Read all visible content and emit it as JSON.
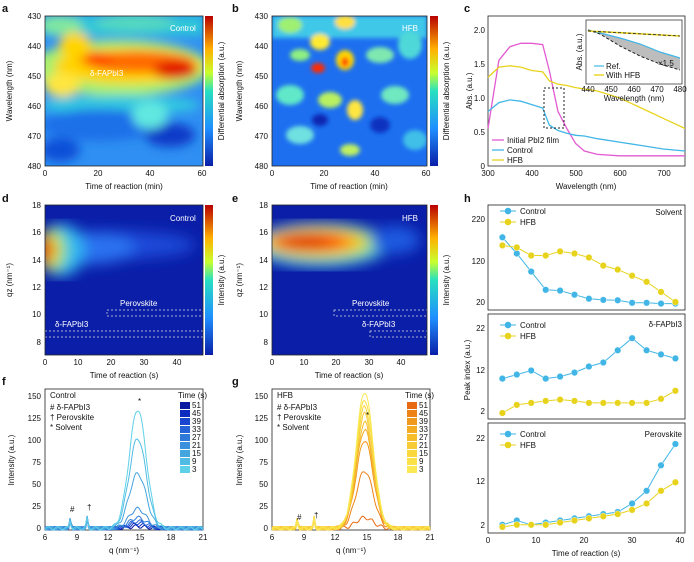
{
  "colors": {
    "control_blue": "#41b6e6",
    "hfb_yellow": "#e8d31c",
    "initial_magenta": "#e35ad2",
    "hm_low": "#0a1ea8",
    "hm_high": "#b80000"
  },
  "panels": {
    "a": {
      "letter": "a",
      "label": "Control",
      "overlay_text": "δ-FAPbI3",
      "xlabel": "Time of reaction (min)",
      "ylabel": "Wavelength (nm)",
      "cbar_label": "Differential absorption (a.u.)",
      "xticks": [
        "0",
        "20",
        "40",
        "60"
      ],
      "yticks": [
        "430",
        "440",
        "450",
        "460",
        "470",
        "480"
      ]
    },
    "b": {
      "letter": "b",
      "label": "HFB",
      "xlabel": "Time of reaction (min)",
      "ylabel": "Wavelength (nm)",
      "cbar_label": "Differential absorption (a.u.)",
      "xticks": [
        "0",
        "20",
        "40",
        "60"
      ],
      "yticks": [
        "430",
        "440",
        "450",
        "460",
        "470",
        "480"
      ]
    },
    "c": {
      "letter": "c",
      "xlabel": "Wavelength (nm)",
      "ylabel": "Abs. (a.u.)",
      "xticks": [
        "300",
        "400",
        "500",
        "600",
        "700"
      ],
      "yticks": [
        "0",
        "0.5",
        "1.0",
        "1.5",
        "2.0"
      ],
      "legend": [
        "Initial PbI2 film",
        "Control",
        "HFB"
      ],
      "inset": {
        "xlabel": "Wavelength (nm)",
        "ylabel": "Abs. (a.u.)",
        "xticks": [
          "440",
          "450",
          "460",
          "470",
          "480"
        ],
        "legend": [
          "Ref.",
          "With HFB"
        ],
        "annotation": "×1.5"
      }
    },
    "d": {
      "letter": "d",
      "label": "Control",
      "label_perovskite": "Perovskite",
      "label_delta": "δ-FAPbI3",
      "xlabel": "Time of reaction (s)",
      "ylabel": "qz (nm⁻¹)",
      "cbar_label": "Intensity (a.u.)",
      "xticks": [
        "0",
        "10",
        "20",
        "30",
        "40"
      ],
      "yticks": [
        "8",
        "10",
        "12",
        "14",
        "16",
        "18"
      ]
    },
    "e": {
      "letter": "e",
      "label": "HFB",
      "label_perovskite": "Perovskite",
      "label_delta": "δ-FAPbI3",
      "xlabel": "Time of reaction (s)",
      "ylabel": "qz (nm⁻¹)",
      "cbar_label": "Intensity (a.u.)",
      "xticks": [
        "0",
        "10",
        "20",
        "30",
        "40"
      ],
      "yticks": [
        "8",
        "10",
        "12",
        "14",
        "16",
        "18"
      ]
    },
    "f": {
      "letter": "f",
      "title": "Control",
      "legend_title": "Time (s)",
      "times": [
        "51",
        "45",
        "39",
        "33",
        "27",
        "21",
        "15",
        "9",
        "3"
      ],
      "markers": [
        "# δ-FAPbI3",
        "† Perovskite",
        "* Solvent"
      ],
      "xlabel": "q (nm⁻¹)",
      "ylabel": "Intensity (a.u.)",
      "xticks": [
        "6",
        "9",
        "12",
        "15",
        "18",
        "21"
      ],
      "yticks": [
        "0",
        "25",
        "50",
        "75",
        "100",
        "125",
        "150"
      ]
    },
    "g": {
      "letter": "g",
      "title": "HFB",
      "legend_title": "Time (s)",
      "times": [
        "51",
        "45",
        "39",
        "33",
        "27",
        "21",
        "15",
        "9",
        "3"
      ],
      "markers": [
        "# δ-FAPbI3",
        "† Perovskite",
        "* Solvent"
      ],
      "xlabel": "q (nm⁻¹)",
      "ylabel": "Intensity (a.u.)",
      "xticks": [
        "6",
        "9",
        "12",
        "15",
        "18",
        "21"
      ],
      "yticks": [
        "0",
        "25",
        "50",
        "75",
        "100",
        "125",
        "150"
      ]
    },
    "h": {
      "letter": "h",
      "ylabel": "Peak index (a.u.)",
      "xlabel": "Time of reaction (s)",
      "xticks": [
        "0",
        "10",
        "20",
        "30",
        "40"
      ],
      "legend": [
        "Control",
        "HFB"
      ],
      "subs": [
        {
          "title": "Solvent",
          "yticks": [
            "20",
            "120",
            "220"
          ]
        },
        {
          "title": "δ-FAPbI3",
          "yticks": [
            "2",
            "12",
            "22"
          ]
        },
        {
          "title": "Perovskite",
          "yticks": [
            "2",
            "12",
            "22"
          ]
        }
      ]
    }
  },
  "chart_data": [
    {
      "type": "heatmap",
      "panel": "a",
      "title": "Control",
      "xlabel": "Time of reaction (min)",
      "ylabel": "Wavelength (nm)",
      "xlim": [
        0,
        60
      ],
      "ylim": [
        480,
        430
      ]
    },
    {
      "type": "heatmap",
      "panel": "b",
      "title": "HFB",
      "xlabel": "Time of reaction (min)",
      "ylabel": "Wavelength (nm)",
      "xlim": [
        0,
        60
      ],
      "ylim": [
        480,
        430
      ]
    },
    {
      "type": "line",
      "panel": "c",
      "xlabel": "Wavelength (nm)",
      "ylabel": "Abs. (a.u.)",
      "xlim": [
        300,
        750
      ],
      "ylim": [
        0,
        2.2
      ],
      "x": [
        300,
        325,
        350,
        375,
        400,
        425,
        440,
        460,
        480,
        500,
        520,
        550,
        600,
        650,
        700,
        750
      ],
      "series": [
        {
          "name": "Initial PbI2 film",
          "values": [
            0.55,
            1.55,
            1.75,
            1.8,
            1.8,
            1.78,
            1.4,
            0.8,
            0.55,
            0.33,
            0.22,
            0.17,
            0.15,
            0.15,
            0.15,
            0.15
          ]
        },
        {
          "name": "Control",
          "values": [
            0.8,
            0.93,
            0.97,
            0.95,
            0.9,
            0.85,
            0.6,
            0.52,
            0.48,
            0.45,
            0.44,
            0.4,
            0.35,
            0.3,
            0.25,
            0.22
          ]
        },
        {
          "name": "HFB",
          "values": [
            1.3,
            1.45,
            1.47,
            1.45,
            1.4,
            1.38,
            1.25,
            1.2,
            1.18,
            1.15,
            1.13,
            1.1,
            1.0,
            0.85,
            0.7,
            0.55
          ]
        }
      ]
    },
    {
      "type": "heatmap",
      "panel": "d",
      "title": "Control",
      "xlabel": "Time of reaction (s)",
      "ylabel": "qz (nm⁻¹)",
      "xlim": [
        0,
        48
      ],
      "ylim": [
        7,
        18
      ]
    },
    {
      "type": "heatmap",
      "panel": "e",
      "title": "HFB",
      "xlabel": "Time of reaction (s)",
      "ylabel": "qz (nm⁻¹)",
      "xlim": [
        0,
        48
      ],
      "ylim": [
        7,
        18
      ]
    },
    {
      "type": "line",
      "panel": "f",
      "title": "Control",
      "xlabel": "q (nm⁻¹)",
      "ylabel": "Intensity (a.u.)",
      "xlim": [
        6,
        21
      ],
      "ylim": [
        0,
        160
      ],
      "series": [
        {
          "name": "51",
          "peak": 2,
          "color": "#0a1aa0"
        },
        {
          "name": "45",
          "peak": 4,
          "color": "#0d2cbf"
        },
        {
          "name": "39",
          "peak": 6,
          "color": "#1846cf"
        },
        {
          "name": "33",
          "peak": 8,
          "color": "#2563d6"
        },
        {
          "name": "27",
          "peak": 12,
          "color": "#2f7ad9"
        },
        {
          "name": "21",
          "peak": 22,
          "color": "#3a90dc"
        },
        {
          "name": "15",
          "peak": 62,
          "color": "#45a6df"
        },
        {
          "name": "9",
          "peak": 102,
          "color": "#50bce3"
        },
        {
          "name": "3",
          "peak": 135,
          "color": "#5fd0e8"
        }
      ]
    },
    {
      "type": "line",
      "panel": "g",
      "title": "HFB",
      "xlabel": "q (nm⁻¹)",
      "ylabel": "Intensity (a.u.)",
      "xlim": [
        6,
        21
      ],
      "ylim": [
        0,
        160
      ],
      "series": [
        {
          "name": "51",
          "peak": 12,
          "color": "#e86a10"
        },
        {
          "name": "45",
          "peak": 65,
          "color": "#ed8216"
        },
        {
          "name": "39",
          "peak": 100,
          "color": "#f1991c"
        },
        {
          "name": "33",
          "peak": 112,
          "color": "#f4ac22"
        },
        {
          "name": "27",
          "peak": 120,
          "color": "#f6bd2a"
        },
        {
          "name": "21",
          "peak": 130,
          "color": "#f7cb33"
        },
        {
          "name": "15",
          "peak": 138,
          "color": "#f8d83d"
        },
        {
          "name": "9",
          "peak": 146,
          "color": "#f9e148"
        },
        {
          "name": "3",
          "peak": 155,
          "color": "#fae955"
        }
      ]
    },
    {
      "type": "scatter",
      "panel": "h-solvent",
      "title": "Solvent",
      "xlabel": "Time of reaction (s)",
      "ylabel": "Peak index (a.u.)",
      "xlim": [
        0,
        41
      ],
      "ylim": [
        0,
        240
      ],
      "x": [
        3,
        6,
        9,
        12,
        15,
        18,
        21,
        24,
        27,
        30,
        33,
        36,
        39
      ],
      "series": [
        {
          "name": "Control",
          "values": [
            170,
            130,
            85,
            40,
            38,
            28,
            18,
            15,
            14,
            8,
            8,
            6,
            6
          ]
        },
        {
          "name": "HFB",
          "values": [
            150,
            145,
            125,
            125,
            135,
            130,
            120,
            100,
            90,
            75,
            60,
            35,
            10
          ]
        }
      ]
    },
    {
      "type": "scatter",
      "panel": "h-delta",
      "title": "δ-FAPbI3",
      "xlabel": "Time of reaction (s)",
      "ylabel": "Peak index (a.u.)",
      "xlim": [
        0,
        41
      ],
      "ylim": [
        0,
        24
      ],
      "x": [
        3,
        6,
        9,
        12,
        15,
        18,
        21,
        24,
        27,
        30,
        33,
        36,
        39
      ],
      "series": [
        {
          "name": "Control",
          "values": [
            9,
            10,
            11,
            9,
            9.5,
            10.5,
            12,
            13,
            16,
            19,
            16,
            15,
            14
          ]
        },
        {
          "name": "HFB",
          "values": [
            0.5,
            2.5,
            3,
            3.5,
            3.8,
            3.5,
            3,
            3,
            3,
            3,
            3,
            4,
            6
          ]
        }
      ]
    },
    {
      "type": "scatter",
      "panel": "h-perovskite",
      "title": "Perovskite",
      "xlabel": "Time of reaction (s)",
      "ylabel": "Peak index (a.u.)",
      "xlim": [
        0,
        41
      ],
      "ylim": [
        0,
        24
      ],
      "x": [
        3,
        6,
        9,
        12,
        15,
        18,
        21,
        24,
        27,
        30,
        33,
        36,
        39
      ],
      "series": [
        {
          "name": "Control",
          "values": [
            1,
            2,
            1,
            1.5,
            2,
            2.5,
            3,
            3.5,
            4,
            6,
            9,
            15,
            20
          ]
        },
        {
          "name": "HFB",
          "values": [
            0.5,
            1,
            1,
            1,
            1.5,
            2,
            2.5,
            3,
            3.5,
            4.5,
            6,
            9,
            11
          ]
        }
      ]
    }
  ]
}
